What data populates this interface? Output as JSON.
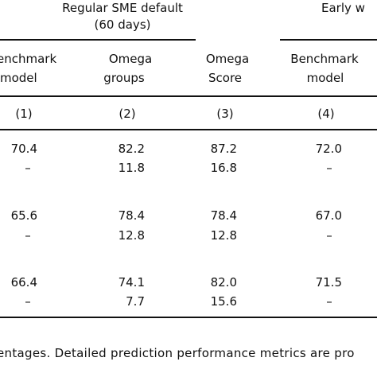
{
  "group_headers": {
    "regular_line1": "Regular SME default",
    "regular_line2": "(60 days)",
    "early": "Early w"
  },
  "columns": [
    {
      "line1": "enchmark",
      "line2": "model",
      "number": "(1)"
    },
    {
      "line1": "Omega",
      "line2": "groups",
      "number": "(2)"
    },
    {
      "line1": "Omega",
      "line2": "Score",
      "number": "(3)"
    },
    {
      "line1": "Benchmark",
      "line2": "model",
      "number": "(4)"
    }
  ],
  "rows": [
    [
      "70.4",
      "82.2",
      "87.2",
      "72.0"
    ],
    [
      "–",
      "11.8",
      "16.8",
      "–"
    ],
    [
      "65.6",
      "78.4",
      "78.4",
      "67.0"
    ],
    [
      "–",
      "12.8",
      "12.8",
      "–"
    ],
    [
      "66.4",
      "74.1",
      "82.0",
      "71.5"
    ],
    [
      "–",
      "7.7",
      "15.6",
      "–"
    ]
  ],
  "footnote": "entages. Detailed prediction performance metrics are pro"
}
